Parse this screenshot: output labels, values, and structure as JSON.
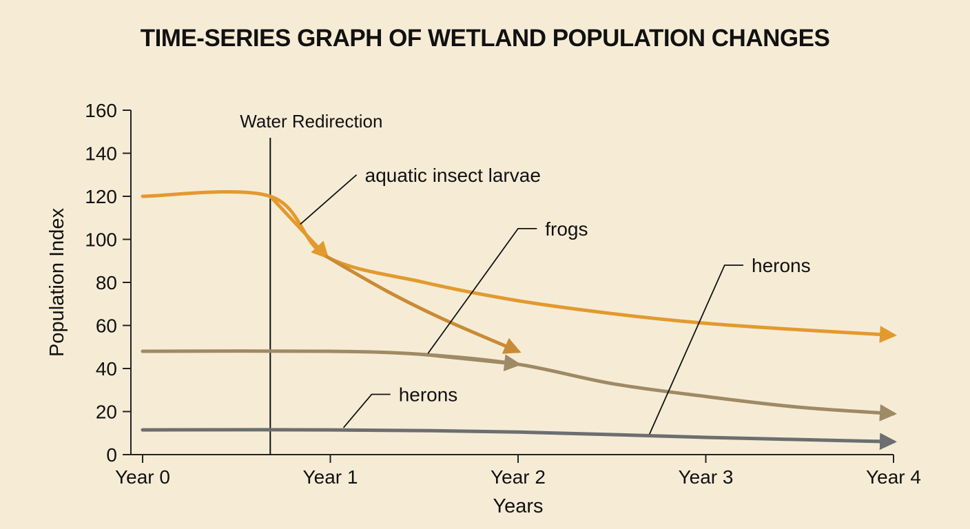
{
  "chart_data": {
    "type": "line",
    "title": "TIME-SERIES GRAPH OF WETLAND POPULATION CHANGES",
    "xlabel": "Years",
    "ylabel": "Population Index",
    "categories": [
      "Year 0",
      "Year 1",
      "Year 2",
      "Year 3",
      "Year 4"
    ],
    "xlim": [
      0,
      4
    ],
    "ylim": [
      0,
      160
    ],
    "yticks": [
      0,
      20,
      40,
      60,
      80,
      100,
      120,
      140,
      160
    ],
    "grid": false,
    "event": {
      "label": "Water Redirection",
      "x": 0.68
    },
    "series": [
      {
        "name": "aquatic insect larvae",
        "color": "#e29a2e",
        "points": [
          [
            0,
            120
          ],
          [
            0.68,
            120
          ],
          [
            0.98,
            92
          ],
          [
            1.5,
            80
          ],
          [
            2,
            71.5
          ],
          [
            2.5,
            65.5
          ],
          [
            3,
            61
          ],
          [
            3.5,
            58
          ],
          [
            4,
            55.5
          ]
        ],
        "arrow_segments": [
          [
            0.68,
            0.98
          ]
        ]
      },
      {
        "name": "",
        "color": "#c98b35",
        "points": [
          [
            0.98,
            92
          ],
          [
            1.3,
            76
          ],
          [
            1.6,
            63
          ],
          [
            2,
            48
          ]
        ]
      },
      {
        "name": "frogs",
        "color": "#9f8a66",
        "points": [
          [
            0,
            48
          ],
          [
            1,
            48
          ],
          [
            1.5,
            46.5
          ],
          [
            2,
            42
          ],
          [
            2.5,
            33
          ],
          [
            3,
            27
          ],
          [
            3.5,
            22
          ],
          [
            4,
            19
          ]
        ],
        "arrow_segments": [
          [
            1.5,
            2
          ]
        ]
      },
      {
        "name": "herons",
        "color": "#6c6e70",
        "points": [
          [
            0,
            11.5
          ],
          [
            1,
            11.5
          ],
          [
            2,
            10.5
          ],
          [
            3,
            8
          ],
          [
            4,
            6
          ]
        ]
      }
    ],
    "annotations": [
      {
        "text": "aquatic insect larvae",
        "points": [
          [
            0.84,
            107
          ],
          [
            1.14,
            130
          ]
        ]
      },
      {
        "text": "frogs",
        "points": [
          [
            1.52,
            47
          ],
          [
            2.0,
            105
          ],
          [
            2.1,
            105
          ]
        ]
      },
      {
        "text": "herons",
        "points": [
          [
            2.7,
            9.5
          ],
          [
            3.1,
            88
          ],
          [
            3.2,
            88
          ]
        ]
      },
      {
        "text": "herons",
        "points": [
          [
            1.07,
            12.5
          ],
          [
            1.22,
            28
          ],
          [
            1.32,
            28
          ]
        ]
      }
    ]
  }
}
